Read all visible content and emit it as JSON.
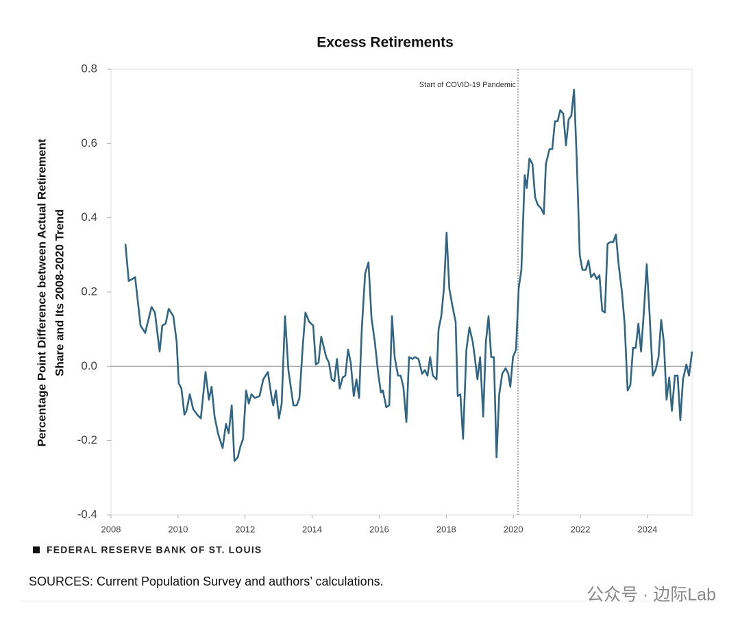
{
  "chart_data": {
    "type": "line",
    "title": "Excess Retirements",
    "ylabel": [
      "Percentage Point Difference between Actual Retirement",
      "Share and Its 2008-2020 Trend"
    ],
    "annotation": {
      "text": "Start of COVID-19 Pandemic",
      "x": 2020.14
    },
    "source_brand": "FEDERAL RESERVE BANK OF ST. LOUIS",
    "sources": "SOURCES: Current Population Survey and authors’ calculations.",
    "watermark": "公众号 · 边际Lab",
    "color": "#2f6585",
    "xlim": [
      2008,
      2025.33
    ],
    "xticks": [
      2008,
      2010,
      2012,
      2014,
      2016,
      2018,
      2020,
      2022,
      2024
    ],
    "ylim": [
      -0.4,
      0.8
    ],
    "yticks": [
      0.8,
      0.6,
      0.4,
      0.2,
      {
        "value": 0,
        "label": "0.0"
      },
      -0.2,
      -0.4
    ],
    "x": [
      2008.43,
      2008.53,
      2008.63,
      2008.72,
      2008.88,
      2009.02,
      2009.21,
      2009.31,
      2009.45,
      2009.53,
      2009.63,
      2009.72,
      2009.86,
      2009.96,
      2010.02,
      2010.1,
      2010.19,
      2010.25,
      2010.35,
      2010.45,
      2010.57,
      2010.68,
      2010.82,
      2010.92,
      2011.0,
      2011.09,
      2011.19,
      2011.33,
      2011.43,
      2011.51,
      2011.6,
      2011.68,
      2011.78,
      2011.86,
      2011.94,
      2012.03,
      2012.11,
      2012.19,
      2012.29,
      2012.43,
      2012.54,
      2012.68,
      2012.8,
      2012.84,
      2012.92,
      2013.01,
      2013.09,
      2013.19,
      2013.29,
      2013.44,
      2013.54,
      2013.62,
      2013.72,
      2013.8,
      2013.91,
      2014.03,
      2014.11,
      2014.19,
      2014.27,
      2014.42,
      2014.5,
      2014.58,
      2014.66,
      2014.74,
      2014.82,
      2014.91,
      2014.99,
      2015.07,
      2015.15,
      2015.24,
      2015.32,
      2015.4,
      2015.48,
      2015.58,
      2015.68,
      2015.77,
      2015.87,
      2015.97,
      2016.05,
      2016.11,
      2016.21,
      2016.3,
      2016.38,
      2016.46,
      2016.56,
      2016.64,
      2016.72,
      2016.81,
      2016.89,
      2016.99,
      2017.07,
      2017.17,
      2017.28,
      2017.36,
      2017.44,
      2017.52,
      2017.6,
      2017.71,
      2017.77,
      2017.85,
      2017.93,
      2018.01,
      2018.09,
      2018.2,
      2018.28,
      2018.34,
      2018.42,
      2018.5,
      2018.6,
      2018.69,
      2018.79,
      2018.85,
      2018.93,
      2019.01,
      2019.1,
      2019.18,
      2019.26,
      2019.34,
      2019.42,
      2019.5,
      2019.58,
      2019.67,
      2019.77,
      2019.85,
      2019.91,
      2019.99,
      2020.08,
      2020.16,
      2020.24,
      2020.34,
      2020.4,
      2020.48,
      2020.57,
      2020.65,
      2020.73,
      2020.83,
      2020.91,
      2020.97,
      2021.08,
      2021.16,
      2021.24,
      2021.32,
      2021.4,
      2021.49,
      2021.57,
      2021.65,
      2021.73,
      2021.81,
      2021.89,
      2021.98,
      2022.06,
      2022.16,
      2022.24,
      2022.32,
      2022.41,
      2022.49,
      2022.57,
      2022.65,
      2022.73,
      2022.81,
      2022.9,
      2022.98,
      2023.06,
      2023.14,
      2023.24,
      2023.32,
      2023.41,
      2023.49,
      2023.57,
      2023.65,
      2023.73,
      2023.81,
      2023.9,
      2023.98,
      2024.06,
      2024.16,
      2024.24,
      2024.33,
      2024.41,
      2024.49,
      2024.57,
      2024.65,
      2024.73,
      2024.82,
      2024.9,
      2024.98,
      2025.06,
      2025.16,
      2025.24,
      2025.33
    ],
    "values": [
      0.33,
      0.23,
      0.235,
      0.24,
      0.11,
      0.09,
      0.16,
      0.145,
      0.04,
      0.11,
      0.115,
      0.155,
      0.135,
      0.065,
      -0.045,
      -0.06,
      -0.13,
      -0.12,
      -0.075,
      -0.115,
      -0.13,
      -0.14,
      -0.015,
      -0.09,
      -0.055,
      -0.135,
      -0.18,
      -0.22,
      -0.155,
      -0.18,
      -0.105,
      -0.255,
      -0.245,
      -0.215,
      -0.195,
      -0.065,
      -0.1,
      -0.075,
      -0.085,
      -0.08,
      -0.035,
      -0.015,
      -0.09,
      -0.105,
      -0.065,
      -0.14,
      -0.1,
      0.135,
      -0.01,
      -0.105,
      -0.105,
      -0.085,
      0.055,
      0.145,
      0.12,
      0.11,
      0.005,
      0.01,
      0.08,
      0.025,
      0.01,
      -0.035,
      -0.04,
      0.02,
      -0.06,
      -0.03,
      -0.025,
      0.045,
      0.01,
      -0.08,
      -0.035,
      -0.085,
      0.1,
      0.25,
      0.28,
      0.13,
      0.065,
      -0.02,
      -0.07,
      -0.065,
      -0.11,
      -0.105,
      0.135,
      0.025,
      -0.025,
      -0.025,
      -0.055,
      -0.15,
      0.025,
      0.02,
      0.025,
      0.02,
      -0.02,
      -0.01,
      -0.025,
      0.025,
      -0.025,
      -0.035,
      0.1,
      0.135,
      0.21,
      0.36,
      0.21,
      0.155,
      0.12,
      -0.08,
      -0.075,
      -0.195,
      0.045,
      0.105,
      0.065,
      0.025,
      -0.035,
      0.025,
      -0.135,
      0.065,
      0.135,
      0.025,
      0.025,
      -0.245,
      -0.075,
      -0.02,
      -0.005,
      -0.02,
      -0.055,
      0.025,
      0.045,
      0.21,
      0.26,
      0.515,
      0.48,
      0.56,
      0.545,
      0.455,
      0.435,
      0.425,
      0.41,
      0.545,
      0.585,
      0.585,
      0.66,
      0.66,
      0.69,
      0.68,
      0.595,
      0.665,
      0.675,
      0.745,
      0.56,
      0.3,
      0.26,
      0.26,
      0.285,
      0.24,
      0.25,
      0.235,
      0.245,
      0.15,
      0.145,
      0.33,
      0.335,
      0.335,
      0.355,
      0.275,
      0.2,
      0.115,
      -0.065,
      -0.05,
      0.05,
      0.05,
      0.115,
      0.04,
      0.155,
      0.275,
      0.145,
      -0.025,
      -0.01,
      0.025,
      0.125,
      0.065,
      -0.09,
      -0.03,
      -0.12,
      -0.025,
      -0.025,
      -0.145,
      -0.035,
      0.005,
      -0.025,
      0.04
    ]
  }
}
